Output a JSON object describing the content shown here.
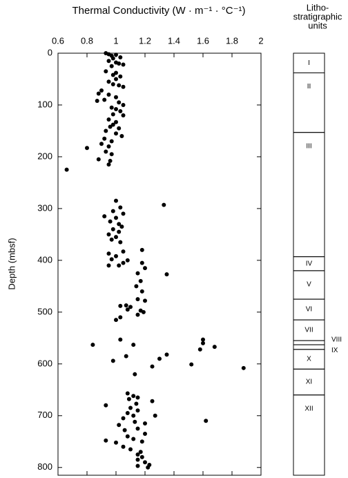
{
  "chart_data": {
    "type": "scatter",
    "title": "Thermal Conductivity (W · m⁻¹ · °C⁻¹)",
    "y_label": "Depth (mbsf)",
    "xlim": [
      0.6,
      2
    ],
    "xticks": [
      0.6,
      0.8,
      1,
      1.2,
      1.4,
      1.6,
      1.8,
      2
    ],
    "ylim": [
      0,
      815
    ],
    "yticks": [
      0,
      100,
      200,
      300,
      400,
      500,
      600,
      700,
      800
    ],
    "color": "#000000",
    "x": [
      0.93,
      0.95,
      0.97,
      1.0,
      1.03,
      0.98,
      0.95,
      1.0,
      1.02,
      0.97,
      1.05,
      0.93,
      1.0,
      0.98,
      1.03,
      1.0,
      0.95,
      0.98,
      1.02,
      1.05,
      0.9,
      0.88,
      0.95,
      1.0,
      0.92,
      0.87,
      1.02,
      1.05,
      0.97,
      1.0,
      1.03,
      0.98,
      1.05,
      0.95,
      1.0,
      0.98,
      0.96,
      1.02,
      0.93,
      1.0,
      1.04,
      0.92,
      0.97,
      0.9,
      0.95,
      0.8,
      0.93,
      0.97,
      0.88,
      0.96,
      0.95,
      0.66,
      1.0,
      1.33,
      1.03,
      0.98,
      1.05,
      0.92,
      1.0,
      0.96,
      1.02,
      1.04,
      0.98,
      1.02,
      0.95,
      1.0,
      0.97,
      1.03,
      1.18,
      1.05,
      0.95,
      1.0,
      0.97,
      1.08,
      1.05,
      0.95,
      1.02,
      1.18,
      1.2,
      1.35,
      1.15,
      1.17,
      1.14,
      1.18,
      1.15,
      1.2,
      1.07,
      1.03,
      1.1,
      1.08,
      1.17,
      1.19,
      1.15,
      1.03,
      1.0,
      1.6,
      1.6,
      1.03,
      0.84,
      1.12,
      1.68,
      1.58,
      1.35,
      1.07,
      1.3,
      0.98,
      1.52,
      1.88,
      1.25,
      1.13,
      1.08,
      1.12,
      1.15,
      1.09,
      1.25,
      1.14,
      0.93,
      1.1,
      1.15,
      1.08,
      1.27,
      1.12,
      1.05,
      1.62,
      1.13,
      1.2,
      1.02,
      1.15,
      1.06,
      1.2,
      1.08,
      1.12,
      0.93,
      1.0,
      1.18,
      1.05,
      1.1,
      1.17,
      1.15,
      1.18,
      1.15,
      1.2,
      1.23,
      1.15,
      1.22
    ],
    "y": [
      0,
      2,
      5,
      3,
      8,
      10,
      15,
      18,
      20,
      25,
      22,
      35,
      38,
      42,
      45,
      50,
      55,
      60,
      62,
      65,
      72,
      78,
      80,
      85,
      90,
      92,
      95,
      100,
      105,
      108,
      112,
      118,
      120,
      128,
      133,
      138,
      142,
      145,
      150,
      155,
      160,
      165,
      170,
      175,
      180,
      183,
      190,
      195,
      205,
      208,
      215,
      225,
      285,
      293,
      298,
      305,
      310,
      315,
      318,
      325,
      330,
      335,
      340,
      345,
      350,
      355,
      360,
      365,
      380,
      383,
      387,
      392,
      398,
      400,
      405,
      410,
      410,
      405,
      415,
      427,
      425,
      440,
      450,
      460,
      475,
      478,
      487,
      488,
      490,
      495,
      497,
      500,
      505,
      510,
      515,
      553,
      560,
      553,
      563,
      563,
      567,
      572,
      582,
      585,
      590,
      594,
      601,
      608,
      605,
      620,
      657,
      662,
      665,
      668,
      672,
      677,
      680,
      685,
      690,
      695,
      700,
      700,
      705,
      710,
      712,
      715,
      718,
      725,
      728,
      735,
      740,
      745,
      748,
      752,
      750,
      760,
      765,
      770,
      775,
      780,
      785,
      790,
      795,
      797,
      800
    ],
    "units_column": {
      "title": [
        "Litho-",
        "stratigraphic",
        "units"
      ],
      "units": [
        {
          "label": "I",
          "top": 0,
          "bottom": 38
        },
        {
          "label": "II",
          "top": 38,
          "bottom": 153
        },
        {
          "label": "III",
          "top": 153,
          "bottom": 393
        },
        {
          "label": "IV",
          "top": 393,
          "bottom": 420
        },
        {
          "label": "V",
          "top": 420,
          "bottom": 475
        },
        {
          "label": "VI",
          "top": 475,
          "bottom": 515
        },
        {
          "label": "VII",
          "top": 515,
          "bottom": 555
        },
        {
          "label": "VIII",
          "top": 555,
          "bottom": 563
        },
        {
          "label": "IX",
          "top": 563,
          "bottom": 572
        },
        {
          "label": "X",
          "top": 572,
          "bottom": 610
        },
        {
          "label": "XI",
          "top": 610,
          "bottom": 660
        },
        {
          "label": "XII",
          "top": 660,
          "bottom": 815
        }
      ]
    }
  }
}
